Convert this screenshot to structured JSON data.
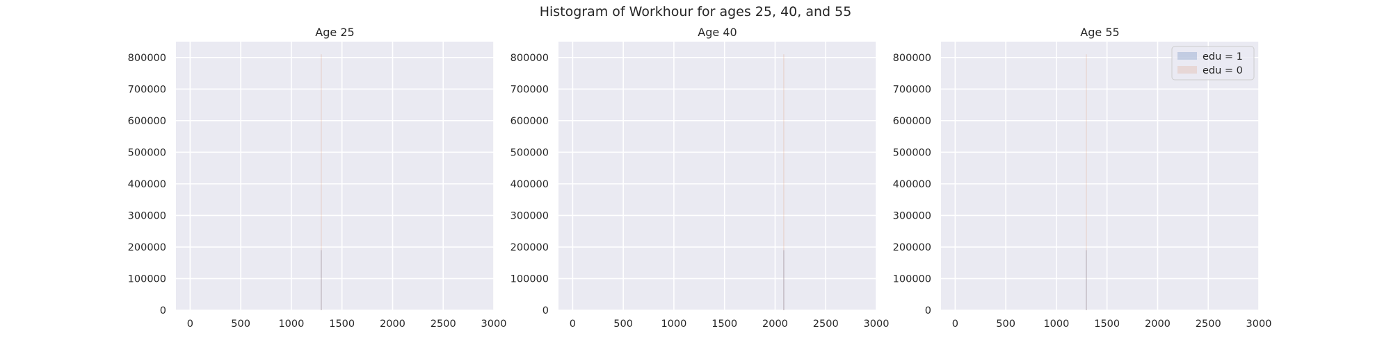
{
  "figure_title": "Histogram of Workhour for ages 25, 40, and 55",
  "chart_data": [
    {
      "type": "bar",
      "title": "Age 25",
      "xlabel": "",
      "ylabel": "",
      "xlim": [
        -140,
        3000
      ],
      "ylim": [
        0,
        850000
      ],
      "xticks": [
        0,
        500,
        1000,
        1500,
        2000,
        2500,
        3000
      ],
      "yticks": [
        0,
        100000,
        200000,
        300000,
        400000,
        500000,
        600000,
        700000,
        800000
      ],
      "grid": true,
      "series": [
        {
          "name": "edu = 1",
          "color": "#4c72b0",
          "bins": [
            {
              "x0": 1290,
              "x1": 1300,
              "value": 190000
            }
          ]
        },
        {
          "name": "edu = 0",
          "color": "#dd8452",
          "bins": [
            {
              "x0": 1290,
              "x1": 1300,
              "value": 810000
            }
          ]
        }
      ]
    },
    {
      "type": "bar",
      "title": "Age 40",
      "xlabel": "",
      "ylabel": "",
      "xlim": [
        -140,
        3000
      ],
      "ylim": [
        0,
        850000
      ],
      "xticks": [
        0,
        500,
        1000,
        1500,
        2000,
        2500,
        3000
      ],
      "yticks": [
        0,
        100000,
        200000,
        300000,
        400000,
        500000,
        600000,
        700000,
        800000
      ],
      "grid": true,
      "series": [
        {
          "name": "edu = 1",
          "color": "#4c72b0",
          "bins": [
            {
              "x0": 2080,
              "x1": 2090,
              "value": 190000
            }
          ]
        },
        {
          "name": "edu = 0",
          "color": "#dd8452",
          "bins": [
            {
              "x0": 2080,
              "x1": 2090,
              "value": 810000
            }
          ]
        }
      ]
    },
    {
      "type": "bar",
      "title": "Age 55",
      "xlabel": "",
      "ylabel": "",
      "xlim": [
        -140,
        3000
      ],
      "ylim": [
        0,
        850000
      ],
      "xticks": [
        0,
        500,
        1000,
        1500,
        2000,
        2500,
        3000
      ],
      "yticks": [
        0,
        100000,
        200000,
        300000,
        400000,
        500000,
        600000,
        700000,
        800000
      ],
      "grid": true,
      "legend": "top-right",
      "series": [
        {
          "name": "edu = 1",
          "color": "#4c72b0",
          "bins": [
            {
              "x0": 1290,
              "x1": 1300,
              "value": 190000
            }
          ]
        },
        {
          "name": "edu = 0",
          "color": "#dd8452",
          "bins": [
            {
              "x0": 1290,
              "x1": 1300,
              "value": 810000
            }
          ]
        }
      ]
    }
  ]
}
